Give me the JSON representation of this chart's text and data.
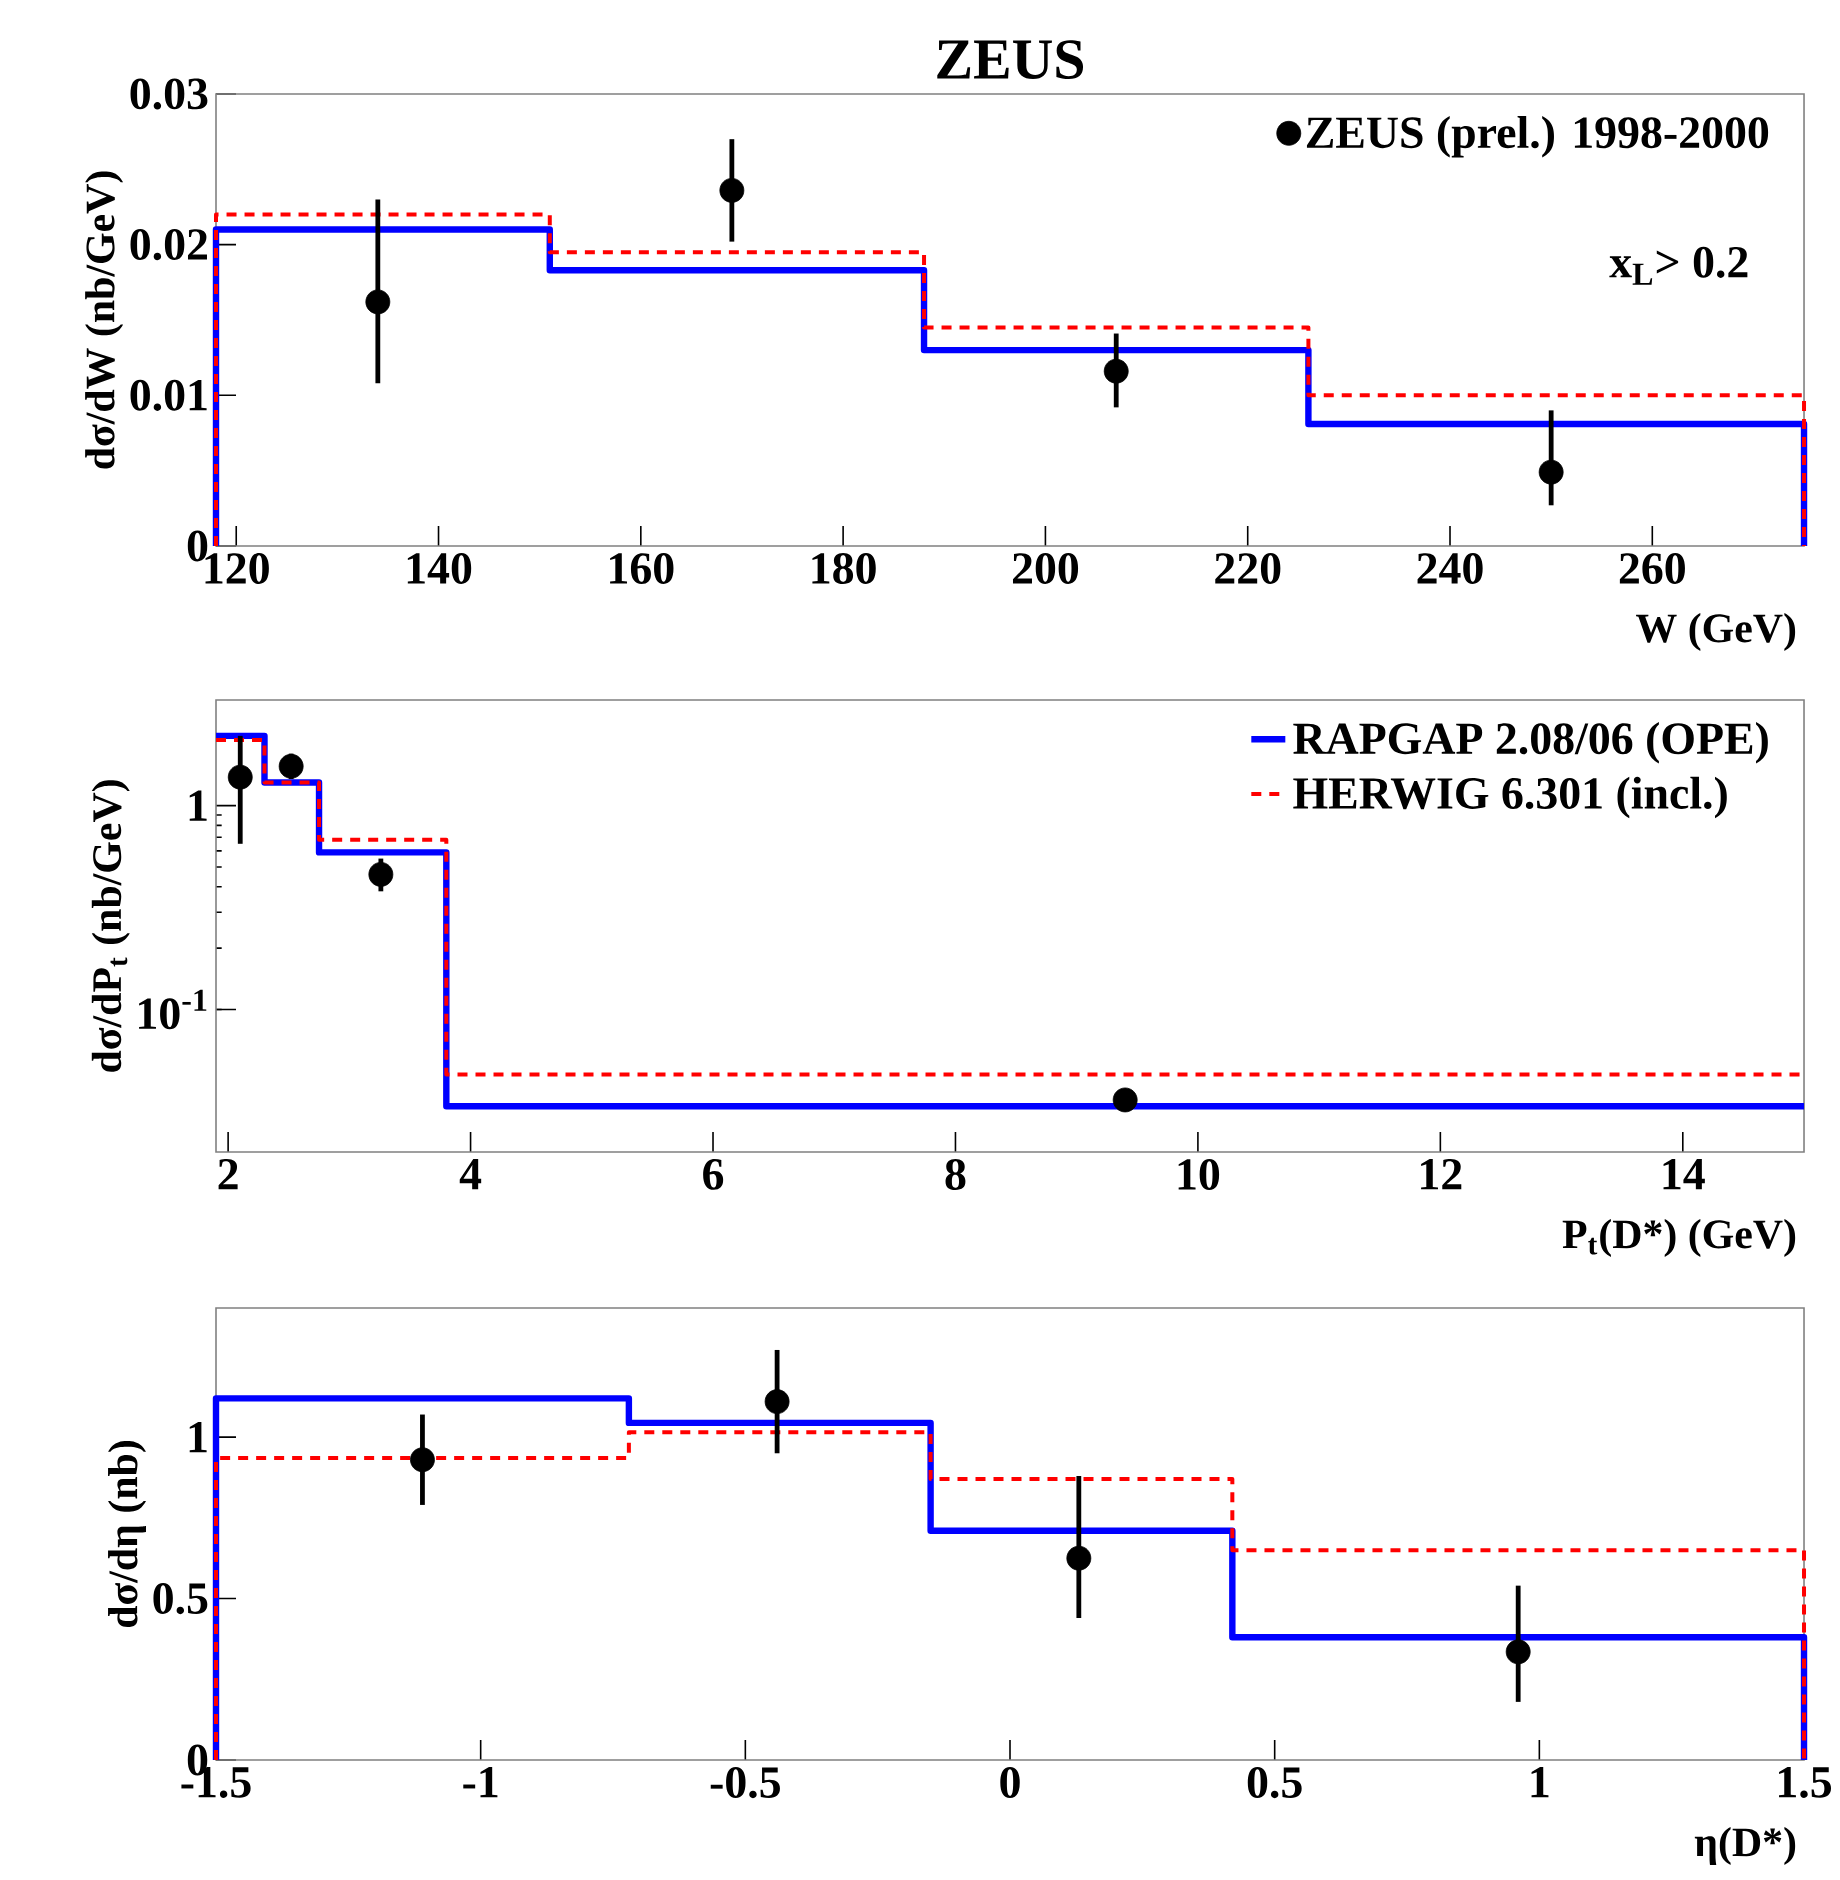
{
  "chart_data": [
    {
      "type": "step",
      "title": "ZEUS",
      "xlabel": "W    (GeV)",
      "ylabel": "dσ/dW (nb/GeV)",
      "xlim": [
        118,
        275
      ],
      "xticks": [
        120,
        140,
        160,
        180,
        200,
        220,
        240,
        260
      ],
      "ylim": [
        0,
        0.03
      ],
      "yticks": [
        0,
        0.01,
        0.02,
        0.03
      ],
      "legend": "top right",
      "annotations": [
        "x$_{L}$> 0.2"
      ],
      "series": [
        {
          "name": "ZEUS (prel.) 1998-2000",
          "type": "scatter",
          "marker": "circle",
          "color": "#000000",
          "x": [
            134,
            169,
            207,
            250
          ],
          "values": [
            0.0162,
            0.0236,
            0.0116,
            0.0049
          ],
          "errors": [
            [
              0.0108,
              0.023
            ],
            [
              0.0202,
              0.027
            ],
            [
              0.0092,
              0.0141
            ],
            [
              0.0027,
              0.009
            ]
          ]
        },
        {
          "line_style": "solid",
          "marker": "none",
          "color": "#0000ff",
          "x": [
            118,
            118,
            151,
            188,
            226,
            275,
            275
          ],
          "values": [
            0,
            0.021,
            0.0183,
            0.013,
            0.0081,
            0.0081,
            0
          ]
        },
        {
          "line_style": "dashed",
          "marker": "none",
          "color": "#ff0000",
          "x": [
            118,
            118,
            151,
            188,
            226,
            275,
            275
          ],
          "values": [
            0,
            0.022,
            0.0195,
            0.0145,
            0.01,
            0.01,
            0
          ]
        }
      ]
    },
    {
      "type": "step",
      "xlabel": "P$_{t}$(D*)   (GeV)",
      "ylabel": "dσ/dP$_{t}$ (nb/GeV)",
      "log": "y",
      "xlim": [
        1.9,
        15
      ],
      "xticks": [
        2,
        4,
        6,
        8,
        10,
        12,
        14
      ],
      "ylim": [
        0.02,
        3.3
      ],
      "yticks": [
        {
          "value": 0.1,
          "label": "10$^{-1}$"
        },
        1
      ],
      "legend": "top right",
      "series": [
        {
          "type": "scatter",
          "marker": "circle",
          "color": "#000000",
          "x": [
            2.1,
            2.52,
            3.26,
            9.4
          ],
          "values": [
            1.38,
            1.56,
            0.46,
            0.036
          ],
          "errors": [
            [
              0.65,
              2.2
            ],
            [
              1.35,
              1.8
            ],
            [
              0.38,
              0.55
            ],
            null
          ]
        },
        {
          "name": "RAPGAP 2.08/06 (OPE)",
          "line_style": "solid",
          "marker": "none",
          "color": "#0000ff",
          "x": [
            1.9,
            2.3,
            2.75,
            3.8,
            15
          ],
          "values": [
            2.2,
            1.3,
            0.59,
            0.0335,
            0.0335
          ]
        },
        {
          "name": "HERWIG 6.301   (incl.)",
          "line_style": "dashed",
          "marker": "none",
          "color": "#ff0000",
          "x": [
            1.9,
            2.3,
            2.75,
            3.8,
            15
          ],
          "values": [
            2.1,
            1.3,
            0.68,
            0.048,
            0.048
          ]
        }
      ]
    },
    {
      "type": "step",
      "xlabel": "η(D*)",
      "ylabel": "dσ/dη (nb)",
      "xlim": [
        -1.5,
        1.5
      ],
      "xticks": [
        -1.5,
        -1,
        -0.5,
        0,
        0.5,
        1,
        1.5
      ],
      "ylim": [
        0,
        1.4
      ],
      "yticks": [
        0,
        0.5,
        1
      ],
      "series": [
        {
          "type": "scatter",
          "marker": "circle",
          "color": "#000000",
          "x": [
            -1.11,
            -0.44,
            0.13,
            0.96
          ],
          "values": [
            0.93,
            1.11,
            0.625,
            0.335
          ],
          "errors": [
            [
              0.79,
              1.07
            ],
            [
              0.95,
              1.27
            ],
            [
              0.44,
              0.88
            ],
            [
              0.18,
              0.54
            ]
          ]
        },
        {
          "line_style": "solid",
          "marker": "none",
          "color": "#0000ff",
          "x": [
            -1.5,
            -1.5,
            -0.72,
            -0.15,
            0.42,
            1.5,
            1.5
          ],
          "values": [
            0,
            1.12,
            1.044,
            0.71,
            0.38,
            0.38,
            0
          ]
        },
        {
          "line_style": "dashed",
          "marker": "none",
          "color": "#ff0000",
          "x": [
            -1.5,
            -1.5,
            -0.72,
            -0.15,
            0.42,
            1.5,
            1.5
          ],
          "values": [
            0,
            0.935,
            1.015,
            0.87,
            0.65,
            0.65,
            0
          ]
        }
      ]
    }
  ]
}
